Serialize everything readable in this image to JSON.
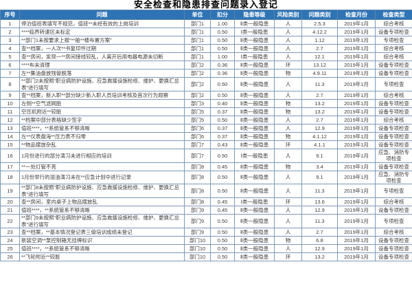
{
  "title": "安全检查和隐患排查问题录入登记",
  "colors": {
    "header_bg": "#2E74B5",
    "header_text": "#FFFFFF",
    "grid_border": "#7C99B8",
    "body_text": "#3A3A3A",
    "title_text": "#000000"
  },
  "table": {
    "columns": [
      {
        "key": "no",
        "label": "序号"
      },
      {
        "key": "problem",
        "label": "问题"
      },
      {
        "key": "unit",
        "label": "单位"
      },
      {
        "key": "deduction",
        "label": "扣分"
      },
      {
        "key": "level",
        "label": "隐患等级"
      },
      {
        "key": "risk",
        "label": "风险类别"
      },
      {
        "key": "category",
        "label": "问题类别"
      },
      {
        "key": "month",
        "label": "检查月份"
      },
      {
        "key": "type",
        "label": "检查类型"
      }
    ],
    "rows": [
      {
        "no": "1",
        "problem": "停泊值班表填写不规范，值班**未经有效的上岗培训",
        "unit": "部门1",
        "deduction": "1.00",
        "level": "Ⅱ类一般隐患",
        "risk": "人",
        "category": "2.5.3",
        "month": "2019年1月",
        "type": "综合考核"
      },
      {
        "no": "2",
        "problem": "****临界转速区未标定",
        "unit": "部门1",
        "deduction": "0.50",
        "level": "Ⅰ类一般隐患",
        "risk": "人",
        "category": "4.12.2",
        "month": "2019年1月",
        "type": "设备专项检查"
      },
      {
        "no": "3",
        "problem": "**部门1未按要求上报“**舶**楼布置方案”",
        "unit": "部门1",
        "deduction": "0.50",
        "level": "Ⅱ类一般隐患",
        "risk": "人",
        "category": "1.12",
        "month": "2019年1月",
        "type": "专项检查"
      },
      {
        "no": "4",
        "problem": "查**档案，一人次**书复印件过期",
        "unit": "部门1",
        "deduction": "0.50",
        "level": "Ⅱ类一般隐患",
        "risk": "人",
        "category": "2.7",
        "month": "2019年1月",
        "type": "综合考核"
      },
      {
        "no": "5",
        "problem": "查**房间，发现一**房间接线较乱，人离开后用电器电源未切断",
        "unit": "部门1",
        "deduction": "1.00",
        "level": "Ⅰ类一般隐患",
        "risk": "人",
        "category": "12.1",
        "month": "2019年1月",
        "type": "综合考核"
      },
      {
        "no": "6",
        "problem": "****布未清理",
        "unit": "部门2",
        "deduction": "0.36",
        "level": "Ⅱ类一般隐患",
        "risk": "环",
        "category": "13.12",
        "month": "2019年1月",
        "type": "设备专项检查"
      },
      {
        "no": "7",
        "problem": "左**集油盘放残管脱落",
        "unit": "部门2",
        "deduction": "0.36",
        "level": "Ⅱ类一般隐患",
        "risk": "物",
        "category": "4.9.11",
        "month": "2019年1月",
        "type": "设备专项检查"
      },
      {
        "no": "8",
        "problem": "**部门2未按照“职业病防护设施、应急救援设施检修、维护、更换汇总表”进行填写",
        "unit": "部门2",
        "deduction": "0.50",
        "level": "Ⅱ类一般隐患",
        "risk": "人",
        "category": "11.3",
        "month": "2019年1月",
        "type": "专项检查"
      },
      {
        "no": "9",
        "problem": "查**档案，新入职**部分缺少新入职人员培训考核及首次行为观察",
        "unit": "部门2",
        "deduction": "0.50",
        "level": "Ⅱ类一般隐患",
        "risk": "人",
        "category": "2.7",
        "month": "2019年1月",
        "type": "综合考核"
      },
      {
        "no": "10",
        "problem": "左侧**空气滤网脏",
        "unit": "部门3",
        "deduction": "0.40",
        "level": "Ⅱ类一般隐患",
        "risk": "物",
        "category": "13.2",
        "month": "2019年1月",
        "type": "设备专项检查"
      },
      {
        "no": "11",
        "problem": "空压机附近**较脏",
        "unit": "部门5",
        "deduction": "0.37",
        "level": "Ⅱ类一般隐患",
        "risk": "物",
        "category": "13.2",
        "month": "2019年1月",
        "type": "设备专项检查"
      },
      {
        "no": "12",
        "problem": "**档案中部分表格缺少签字",
        "unit": "部门5",
        "deduction": "0.50",
        "level": "Ⅱ类一般隐患",
        "risk": "人",
        "category": "2.7",
        "month": "2019年1月",
        "type": "综合考核"
      },
      {
        "no": "13",
        "problem": "值班****，**系统管系不够清晰",
        "unit": "部门6",
        "deduction": "0.37",
        "level": "Ⅱ类一般隐患",
        "risk": "人",
        "category": "12.9",
        "month": "2019年1月",
        "type": "设备专项检查"
      },
      {
        "no": "14",
        "problem": "左**仪表盘海**压力表不归零",
        "unit": "部门6",
        "deduction": "0.37",
        "level": "Ⅱ类一般隐患",
        "risk": "物",
        "category": "4.1.12",
        "month": "2019年1月",
        "type": "设备专项检查"
      },
      {
        "no": "15",
        "problem": "**物品摆放杂乱",
        "unit": "部门7",
        "deduction": "0.43",
        "level": "Ⅱ类一般隐患",
        "risk": "环",
        "category": "4.1.1",
        "month": "2019年1月",
        "type": "设备专项检查"
      },
      {
        "no": "16",
        "problem": "1月份进行的部分演习未进行相应的培训",
        "unit": "部门7",
        "deduction": "0.50",
        "level": "Ⅰ类一般隐患",
        "risk": "人",
        "category": "9.1",
        "month": "2019年1月",
        "type": "应急、消防专项检查"
      },
      {
        "no": "17",
        "problem": "**一处灯管不亮",
        "unit": "部门8",
        "deduction": "0.45",
        "level": "Ⅱ类一般隐患",
        "risk": "物",
        "category": "3.4",
        "month": "2019年1月",
        "type": "设备专项检查"
      },
      {
        "no": "18",
        "problem": "1月份举行的溢油演习未在**应急计划中进行记录",
        "unit": "部门8",
        "deduction": "0.50",
        "level": "Ⅱ类一般隐患",
        "risk": "人",
        "category": "9.1",
        "month": "2019年1月",
        "type": "应急、消防专项检查"
      },
      {
        "no": "19",
        "problem": "**部门8未按照“职业病防护设施、应急救援设施检修、维护、更换汇总表”进行填写",
        "unit": "部门8",
        "deduction": "0.50",
        "level": "Ⅱ类一般隐患",
        "risk": "人",
        "category": "11.3",
        "month": "2019年1月",
        "type": "专项检查"
      },
      {
        "no": "20",
        "problem": "查**房间，室内桌子上物品摆放乱",
        "unit": "部门8",
        "deduction": "0.45",
        "level": "Ⅰ类一般隐患",
        "risk": "环",
        "category": "13.6",
        "month": "2019年1月",
        "type": "综合考核"
      },
      {
        "no": "21",
        "problem": "值班****，**系统管系不够清晰",
        "unit": "部门9",
        "deduction": "0.45",
        "level": "Ⅱ类一般隐患",
        "risk": "人",
        "category": "12.9",
        "month": "2019年1月",
        "type": "设备专项检查"
      },
      {
        "no": "22",
        "problem": "**部门9未按照“职业病防护设施、应急救援设施检修、维护、更换汇总表”进行填写",
        "unit": "部门9",
        "deduction": "0.50",
        "level": "Ⅱ类一般隐患",
        "risk": "人",
        "category": "11.3",
        "month": "2019年1月",
        "type": "专项检查"
      },
      {
        "no": "23",
        "problem": "查**档案，**基本情况登记表三级培训成绩未登记",
        "unit": "部门9",
        "deduction": "0.50",
        "level": "Ⅱ类一般隐患",
        "risk": "人",
        "category": "2.7",
        "month": "2019年1月",
        "type": "综合考核"
      },
      {
        "no": "24",
        "problem": "新装空调**泵控制箱无挂牌标识",
        "unit": "部门10",
        "deduction": "0.50",
        "level": "Ⅱ类一般隐患",
        "risk": "物",
        "category": "6.8",
        "month": "2019年1月",
        "type": "设备专项检查"
      },
      {
        "no": "25",
        "problem": "值班****，**系统管系不够清晰",
        "unit": "部门10",
        "deduction": "0.50",
        "level": "Ⅱ类一般隐患",
        "risk": "人",
        "category": "12.9",
        "month": "2019年1月",
        "type": "设备专项检查"
      },
      {
        "no": "26",
        "problem": "**飞轮附近**较脏",
        "unit": "部门10",
        "deduction": "0.50",
        "level": "Ⅱ类一般隐患",
        "risk": "环",
        "category": "13.2",
        "month": "2019年1月",
        "type": "设备专项检查"
      }
    ]
  }
}
